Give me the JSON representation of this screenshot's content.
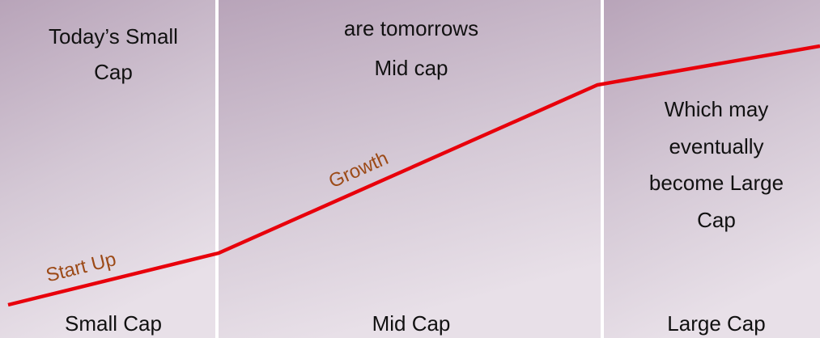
{
  "panels": [
    {
      "top_text": [
        "Today’s Small",
        "Cap"
      ],
      "bottom_label": "Small Cap"
    },
    {
      "top_text": [
        "are tomorrows",
        "Mid cap"
      ],
      "bottom_label": "Mid Cap"
    },
    {
      "top_text": [
        "Which may",
        "eventually",
        "become Large",
        "Cap"
      ],
      "bottom_label": "Large Cap"
    }
  ],
  "annotations": [
    "Start Up",
    "Growth"
  ]
}
